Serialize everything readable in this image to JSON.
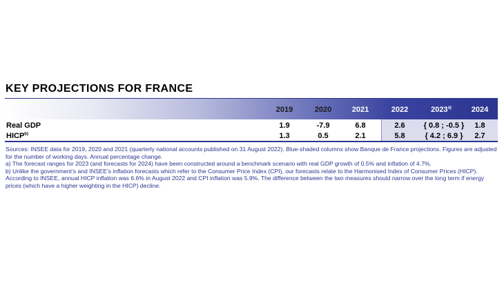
{
  "title": "KEY PROJECTIONS FOR FRANCE",
  "table": {
    "headers": [
      "2019",
      "2020",
      "2021",
      "2022",
      "2023",
      "2024"
    ],
    "header_2023_note": "a)",
    "rows": [
      {
        "label": "Real GDP",
        "label_note": "",
        "values": [
          "1.9",
          "-7.9",
          "6.8",
          "2.6",
          "{ 0.8 ; -0.5 }",
          "1.8"
        ]
      },
      {
        "label": "HICP",
        "label_note": "b)",
        "values": [
          "1.3",
          "0.5",
          "2.1",
          "5.8",
          "{ 4.2 ; 6.9 }",
          "2.7"
        ]
      }
    ]
  },
  "notes": {
    "sources": "Sources: INSEE data for 2019, 2020 and 2021 (quarterly national accounts published on 31 August 2022). Blue-shaded columns show Banque de France projections. Figures are adjusted for the number of working days. Annual percentage change.",
    "note_a": "a)  The forecast ranges for 2023 (and forecasts for 2024) have been constructed around a benchmark scenario with real GDP growth of 0.5% and inflation of 4.7%.",
    "note_b": "b)  Unlike the government’s and INSEE’s inflation forecasts which refer to the Consumer Price Index (CPI), our forecasts relate to the Harmonised Index of Consumer Prices (HICP). According to INSEE, annual HICP inflation was 6.6% in August 2022 and CPI inflation was 5.9%. The difference between the two measures should narrow over the long term if energy prices (which have a higher weighting in the HICP) decline."
  },
  "colors": {
    "accent": "#2b3590",
    "shade": "#dcdcef"
  }
}
